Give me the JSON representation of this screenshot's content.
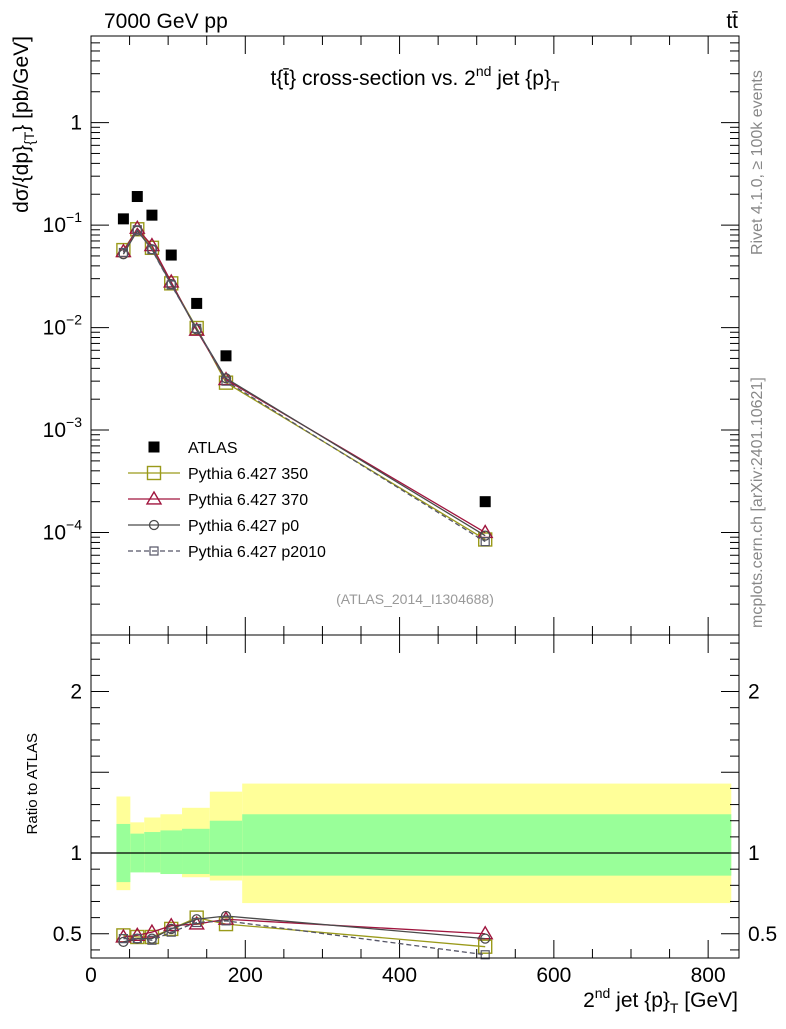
{
  "header": {
    "energy_label": "7000 GeV pp",
    "process_label": "tt̄"
  },
  "side_labels": {
    "rivet": "Rivet 4.1.0, ≥ 100k events",
    "mcplots": "mcplots.cern.ch [arXiv:2401.10621]"
  },
  "chart_data": [
    {
      "type": "scatter",
      "panel": "main",
      "title": "t{t̄} cross-section vs. 2nd jet {p}T",
      "ylabel": "dσ/{dp}{T}} [pb/GeV]",
      "yscale": "log",
      "xlim": [
        0,
        840
      ],
      "ylim": [
        1e-05,
        7
      ],
      "y_ticks": [
        {
          "value": 0.0001,
          "base": "10",
          "exp": "−4"
        },
        {
          "value": 0.001,
          "base": "10",
          "exp": "−3"
        },
        {
          "value": 0.01,
          "base": "10",
          "exp": "−2"
        },
        {
          "value": 0.1,
          "base": "10",
          "exp": "−1"
        },
        {
          "value": 1,
          "base": "1",
          "exp": ""
        }
      ],
      "watermark": "(ATLAS_2014_I1304688)",
      "x": [
        42,
        60,
        79,
        104,
        137,
        175,
        511
      ],
      "series": [
        {
          "name": "ATLAS",
          "color": "#000000",
          "marker": "square-filled",
          "values": [
            0.115,
            0.19,
            0.125,
            0.051,
            0.0172,
            0.0053,
            0.0002
          ]
        },
        {
          "name": "Pythia 6.427 350",
          "color": "#9a9a1a",
          "marker": "square-open",
          "dash": "",
          "values": [
            0.057,
            0.091,
            0.06,
            0.027,
            0.0099,
            0.0029,
            8.55e-05
          ]
        },
        {
          "name": "Pythia 6.427 370",
          "color": "#a0153e",
          "marker": "triangle-open",
          "dash": "",
          "values": [
            0.055,
            0.093,
            0.063,
            0.0278,
            0.0094,
            0.0031,
            0.0001
          ]
        },
        {
          "name": "Pythia 6.427 p0",
          "color": "#4a4a4a",
          "marker": "circle-open",
          "dash": "",
          "values": [
            0.052,
            0.088,
            0.058,
            0.0265,
            0.0096,
            0.0032,
            9.32e-05
          ]
        },
        {
          "name": "Pythia 6.427 p2010",
          "color": "#555566",
          "marker": "square-small",
          "dash": "5,3",
          "values": [
            0.054,
            0.09,
            0.0575,
            0.026,
            0.0098,
            0.003,
            8.15e-05
          ]
        }
      ]
    },
    {
      "type": "line",
      "panel": "ratio",
      "ylabel": "Ratio to ATLAS",
      "xlabel": "2nd jet {p}T [GeV]",
      "xlim": [
        0,
        840
      ],
      "ylim": [
        0.35,
        2.35
      ],
      "x_ticks": [
        0,
        200,
        400,
        600,
        800
      ],
      "y_ticks": [
        0.5,
        1,
        2
      ],
      "bands": {
        "bins": [
          [
            33,
            51
          ],
          [
            51,
            69
          ],
          [
            69,
            90
          ],
          [
            90,
            118
          ],
          [
            118,
            154
          ],
          [
            154,
            196
          ],
          [
            196,
            830
          ]
        ],
        "inner": [
          [
            0.82,
            1.18
          ],
          [
            0.88,
            1.12
          ],
          [
            0.88,
            1.13
          ],
          [
            0.87,
            1.14
          ],
          [
            0.87,
            1.15
          ],
          [
            0.86,
            1.2
          ],
          [
            0.86,
            1.24
          ]
        ],
        "outer": [
          [
            0.77,
            1.35
          ],
          [
            0.89,
            1.19
          ],
          [
            0.88,
            1.22
          ],
          [
            0.87,
            1.24
          ],
          [
            0.85,
            1.28
          ],
          [
            0.83,
            1.38
          ],
          [
            0.69,
            1.43
          ]
        ],
        "inner_color": "#99ff99",
        "outer_color": "#ffff99"
      },
      "x": [
        42,
        60,
        79,
        104,
        137,
        175,
        511
      ],
      "series": [
        {
          "name": "Pythia 6.427 350",
          "color": "#9a9a1a",
          "marker": "square-open",
          "dash": "",
          "values": [
            0.49,
            0.48,
            0.48,
            0.53,
            0.6,
            0.56,
            0.42
          ]
        },
        {
          "name": "Pythia 6.427 370",
          "color": "#a0153e",
          "marker": "triangle-open",
          "dash": "",
          "values": [
            0.48,
            0.49,
            0.51,
            0.55,
            0.56,
            0.59,
            0.5
          ]
        },
        {
          "name": "Pythia 6.427 p0",
          "color": "#4a4a4a",
          "marker": "circle-open",
          "dash": "",
          "values": [
            0.45,
            0.47,
            0.47,
            0.53,
            0.59,
            0.61,
            0.47
          ]
        },
        {
          "name": "Pythia 6.427 p2010",
          "color": "#555566",
          "marker": "square-small",
          "dash": "5,3",
          "values": [
            0.47,
            0.47,
            0.46,
            0.51,
            0.57,
            0.58,
            0.37
          ]
        }
      ]
    }
  ]
}
